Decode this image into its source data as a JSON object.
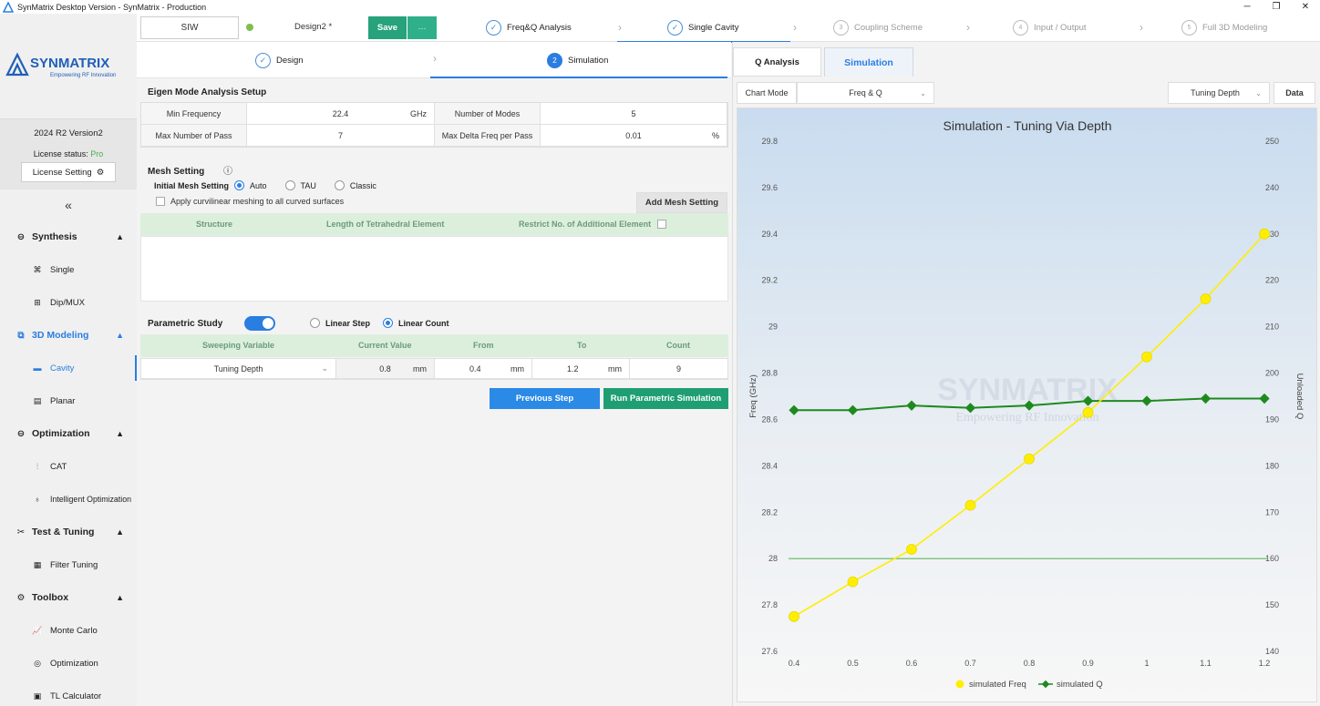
{
  "window": {
    "title": "SynMatrix Desktop Version - SynMatrix - Production"
  },
  "colors": {
    "accent": "#2a7de1",
    "save": "#27a27a",
    "run": "#1f9e74",
    "prev": "#2a8ae6",
    "freq_series": "#ffee00",
    "q_series": "#1e8a1e",
    "pro": "#4caf50"
  },
  "sidebar": {
    "logo_text": "SYNMATRIX",
    "logo_tagline": "Empowering RF Innovation",
    "version": "2024 R2 Version2",
    "license_status_label": "License status:",
    "license_status_value": "Pro",
    "license_setting": "License Setting",
    "collapse_glyph": "«",
    "groups": [
      {
        "label": "Synthesis",
        "icon": "synthesis-icon",
        "items": [
          {
            "label": "Single",
            "icon": "single-icon"
          },
          {
            "label": "Dip/MUX",
            "icon": "dipmux-icon"
          }
        ]
      },
      {
        "label": "3D Modeling",
        "icon": "modeling-icon",
        "items": [
          {
            "label": "Cavity",
            "icon": "cavity-icon"
          },
          {
            "label": "Planar",
            "icon": "planar-icon"
          }
        ]
      },
      {
        "label": "Optimization",
        "icon": "optimization-icon",
        "items": [
          {
            "label": "CAT",
            "icon": "cat-icon"
          },
          {
            "label": "Intelligent Optimization",
            "icon": "bulb-icon"
          }
        ]
      },
      {
        "label": "Test & Tuning",
        "icon": "tools-icon",
        "items": [
          {
            "label": "Filter Tuning",
            "icon": "filter-tuning-icon"
          }
        ]
      },
      {
        "label": "Toolbox",
        "icon": "toolbox-icon",
        "items": [
          {
            "label": "Monte Carlo",
            "icon": "chart-icon"
          },
          {
            "label": "Optimization",
            "icon": "target-icon"
          },
          {
            "label": "TL Calculator",
            "icon": "calculator-icon"
          }
        ]
      }
    ]
  },
  "topbar": {
    "filter_type": "SIW",
    "design_name": "Design2 *",
    "save_label": "Save",
    "more_label": "···",
    "steps": [
      {
        "num": "✓",
        "label": "Freq&Q Analysis"
      },
      {
        "num": "✓",
        "label": "Single Cavity"
      },
      {
        "num": "3",
        "label": "Coupling Scheme"
      },
      {
        "num": "4",
        "label": "Input / Output"
      },
      {
        "num": "5",
        "label": "Full 3D Modeling"
      }
    ]
  },
  "subtabs": {
    "design": {
      "num": "✓",
      "label": "Design"
    },
    "simulation": {
      "num": "2",
      "label": "Simulation"
    }
  },
  "eigen": {
    "title": "Eigen Mode Analysis Setup",
    "min_freq_label": "Min Frequency",
    "min_freq_value": "22.4",
    "min_freq_unit": "GHz",
    "num_modes_label": "Number of Modes",
    "num_modes_value": "5",
    "max_pass_label": "Max Number of Pass",
    "max_pass_value": "7",
    "max_delta_label": "Max Delta Freq per Pass",
    "max_delta_value": "0.01",
    "max_delta_unit": "%"
  },
  "mesh": {
    "title": "Mesh Setting",
    "initial_label": "Initial Mesh Setting",
    "options": [
      "Auto",
      "TAU",
      "Classic"
    ],
    "curvilinear_label": "Apply curvilinear meshing to all curved surfaces",
    "add_button": "Add Mesh Setting",
    "columns": [
      "Structure",
      "Length of Tetrahedral Element",
      "Restrict No. of Additional Element"
    ]
  },
  "parametric": {
    "title": "Parametric Study",
    "mode_options": [
      "Linear Step",
      "Linear Count"
    ],
    "columns": [
      "Sweeping Variable",
      "Current Value",
      "From",
      "To",
      "Count"
    ],
    "row": {
      "variable": "Tuning Depth",
      "current": "0.8",
      "current_unit": "mm",
      "from": "0.4",
      "from_unit": "mm",
      "to": "1.2",
      "to_unit": "mm",
      "count": "9"
    },
    "prev_button": "Previous Step",
    "run_button": "Run Parametric Simulation"
  },
  "right": {
    "tabs": [
      "Q Analysis",
      "Simulation"
    ],
    "chart_mode_label": "Chart Mode",
    "chart_mode_value": "Freq & Q",
    "x_var_value": "Tuning Depth",
    "data_button": "Data"
  },
  "chart_data": {
    "type": "line",
    "title": "Simulation - Tuning Via Depth",
    "ylabel": "Freq (GHz)",
    "y2label": "Unloaded Q",
    "watermark": "SYNMATRIX",
    "watermark_tagline": "Empowering RF Innovation",
    "x": [
      0.4,
      0.5,
      0.6,
      0.7,
      0.8,
      0.9,
      1,
      1.1,
      1.2
    ],
    "x_ticks": [
      "0.4",
      "0.5",
      "0.6",
      "0.7",
      "0.8",
      "0.9",
      "1",
      "1.1",
      "1.2"
    ],
    "ylim": [
      27.6,
      29.8
    ],
    "y_ticks": [
      "29.8",
      "29.6",
      "29.4",
      "29.2",
      "29",
      "28.8",
      "28.6",
      "28.4",
      "28.2",
      "28",
      "27.8",
      "27.6"
    ],
    "y2lim": [
      140,
      250
    ],
    "y2_ticks": [
      "250",
      "240",
      "230",
      "220",
      "210",
      "200",
      "190",
      "180",
      "170",
      "160",
      "150",
      "140"
    ],
    "reference_line": 28.0,
    "series": [
      {
        "name": "simulated Freq",
        "axis": "left",
        "values": [
          27.75,
          27.9,
          28.04,
          28.23,
          28.43,
          28.63,
          28.87,
          29.12,
          29.4
        ]
      },
      {
        "name": "simulated Q",
        "axis": "right",
        "values": [
          192,
          192,
          193,
          192.5,
          193,
          194,
          194,
          194.5,
          194.5
        ]
      }
    ],
    "legend": "bottom",
    "grid": false
  }
}
